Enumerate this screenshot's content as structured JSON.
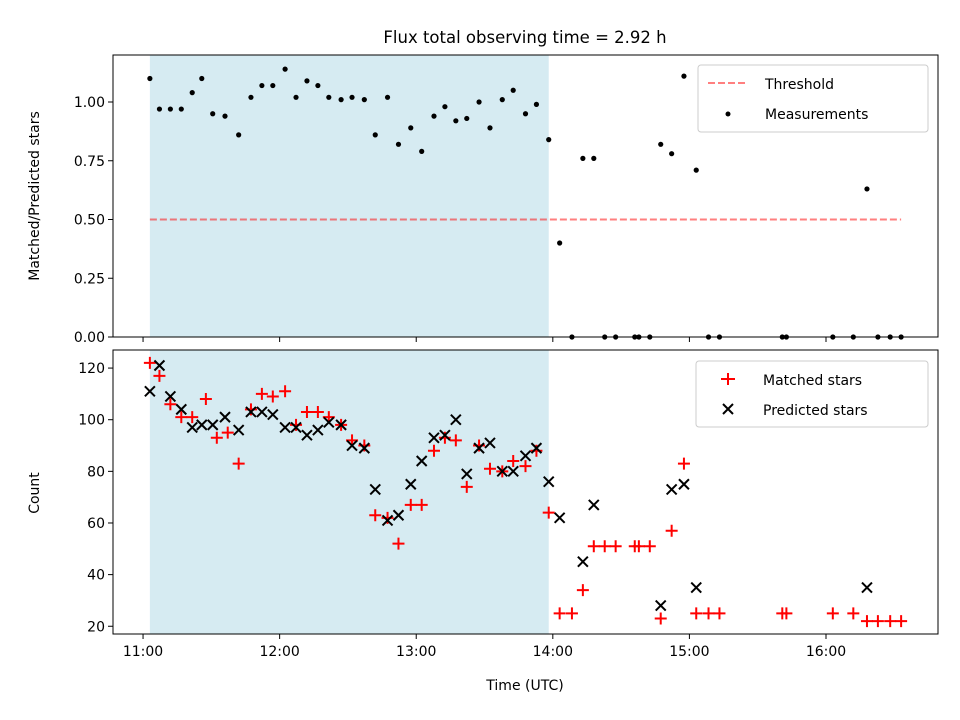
{
  "colors": {
    "background": "#ffffff",
    "shade": "#add8e6",
    "threshold": "#ff0000",
    "measurements": "#000000",
    "matched": "#ff0000",
    "predicted": "#000000"
  },
  "chart_data": [
    {
      "type": "scatter",
      "title": "Flux total observing time = 2.92 h",
      "xlabel": "",
      "ylabel": "Matched/Predicted stars",
      "xlim_hours": [
        10.78,
        16.82
      ],
      "ylim": [
        0,
        1.2
      ],
      "yticks": [
        0.0,
        0.25,
        0.5,
        0.75,
        1.0
      ],
      "ytick_labels": [
        "0.00",
        "0.25",
        "0.50",
        "0.75",
        "1.00"
      ],
      "shaded_span_hours": [
        11.05,
        13.97
      ],
      "legend_position": "top-right",
      "threshold": {
        "name": "Threshold",
        "value": 0.5,
        "x_range_hours": [
          11.05,
          16.55
        ],
        "style": "dashed"
      },
      "series": [
        {
          "name": "Measurements",
          "marker": "dot",
          "x": [
            11.05,
            11.12,
            11.2,
            11.28,
            11.36,
            11.43,
            11.51,
            11.6,
            11.7,
            11.79,
            11.87,
            11.95,
            12.04,
            12.12,
            12.2,
            12.28,
            12.36,
            12.45,
            12.53,
            12.62,
            12.7,
            12.79,
            12.87,
            12.96,
            13.04,
            13.13,
            13.21,
            13.29,
            13.37,
            13.46,
            13.54,
            13.63,
            13.71,
            13.8,
            13.88,
            13.97,
            14.05,
            14.14,
            14.22,
            14.3,
            14.38,
            14.46,
            14.6,
            14.63,
            14.71,
            14.79,
            14.87,
            14.96,
            15.05,
            15.14,
            15.22,
            15.68,
            15.71,
            16.05,
            16.2,
            16.3,
            16.38,
            16.47,
            16.55
          ],
          "y": [
            1.1,
            0.97,
            0.97,
            0.97,
            1.04,
            1.1,
            0.95,
            0.94,
            0.86,
            1.02,
            1.07,
            1.07,
            1.14,
            1.02,
            1.09,
            1.07,
            1.02,
            1.01,
            1.02,
            1.01,
            0.86,
            1.02,
            0.82,
            0.89,
            0.79,
            0.94,
            0.98,
            0.92,
            0.93,
            1.0,
            0.89,
            1.01,
            1.05,
            0.95,
            0.99,
            0.84,
            0.4,
            0.0,
            0.76,
            0.76,
            0.0,
            0.0,
            0.0,
            0.0,
            0.0,
            0.82,
            0.78,
            1.11,
            0.71,
            0.0,
            0.0,
            0.0,
            0.0,
            0.0,
            0.0,
            0.63,
            0.0,
            0.0,
            0.0
          ]
        }
      ]
    },
    {
      "type": "scatter",
      "title": "",
      "xlabel": "Time (UTC)",
      "ylabel": "Count",
      "xlim_hours": [
        10.78,
        16.82
      ],
      "ylim": [
        17,
        127
      ],
      "yticks": [
        20,
        40,
        60,
        80,
        100,
        120
      ],
      "ytick_labels": [
        "20",
        "40",
        "60",
        "80",
        "100",
        "120"
      ],
      "xticks_hours": [
        11,
        12,
        13,
        14,
        15,
        16
      ],
      "xtick_labels": [
        "11:00",
        "12:00",
        "13:00",
        "14:00",
        "15:00",
        "16:00"
      ],
      "shaded_span_hours": [
        11.05,
        13.97
      ],
      "legend_position": "top-right",
      "series": [
        {
          "name": "Matched stars",
          "marker": "plus",
          "x": [
            11.05,
            11.12,
            11.2,
            11.28,
            11.36,
            11.46,
            11.54,
            11.62,
            11.7,
            11.79,
            11.87,
            11.95,
            12.04,
            12.12,
            12.2,
            12.28,
            12.36,
            12.45,
            12.53,
            12.62,
            12.7,
            12.79,
            12.87,
            12.96,
            13.04,
            13.13,
            13.21,
            13.29,
            13.37,
            13.46,
            13.54,
            13.63,
            13.71,
            13.8,
            13.88,
            13.97,
            14.05,
            14.14,
            14.22,
            14.3,
            14.38,
            14.46,
            14.6,
            14.63,
            14.71,
            14.79,
            14.87,
            14.96,
            15.05,
            15.14,
            15.22,
            15.68,
            15.71,
            16.05,
            16.2,
            16.3,
            16.38,
            16.47,
            16.55
          ],
          "y": [
            122,
            117,
            106,
            101,
            101,
            108,
            93,
            95,
            83,
            104,
            110,
            109,
            111,
            98,
            103,
            103,
            101,
            98,
            92,
            90,
            63,
            62,
            52,
            67,
            67,
            88,
            93,
            92,
            74,
            90,
            81,
            80,
            84,
            82,
            88,
            64,
            25,
            25,
            34,
            51,
            51,
            51,
            51,
            51,
            51,
            23,
            57,
            83,
            25,
            25,
            25,
            25,
            25,
            25,
            25,
            22,
            22,
            22,
            22
          ]
        },
        {
          "name": "Predicted stars",
          "marker": "x",
          "x": [
            11.05,
            11.12,
            11.2,
            11.28,
            11.36,
            11.43,
            11.51,
            11.6,
            11.7,
            11.79,
            11.87,
            11.95,
            12.04,
            12.12,
            12.2,
            12.28,
            12.36,
            12.45,
            12.53,
            12.62,
            12.7,
            12.79,
            12.87,
            12.96,
            13.04,
            13.13,
            13.21,
            13.29,
            13.37,
            13.46,
            13.54,
            13.63,
            13.71,
            13.8,
            13.88,
            13.97,
            14.05,
            14.22,
            14.3,
            14.79,
            14.87,
            14.96,
            15.05,
            16.3
          ],
          "y": [
            111,
            121,
            109,
            104,
            97,
            98,
            98,
            101,
            96,
            103,
            103,
            102,
            97,
            97,
            94,
            96,
            99,
            98,
            90,
            89,
            73,
            61,
            63,
            75,
            84,
            93,
            94,
            100,
            79,
            89,
            91,
            80,
            80,
            86,
            89,
            76,
            62,
            45,
            67,
            28,
            73,
            75,
            35,
            35
          ]
        }
      ]
    }
  ]
}
